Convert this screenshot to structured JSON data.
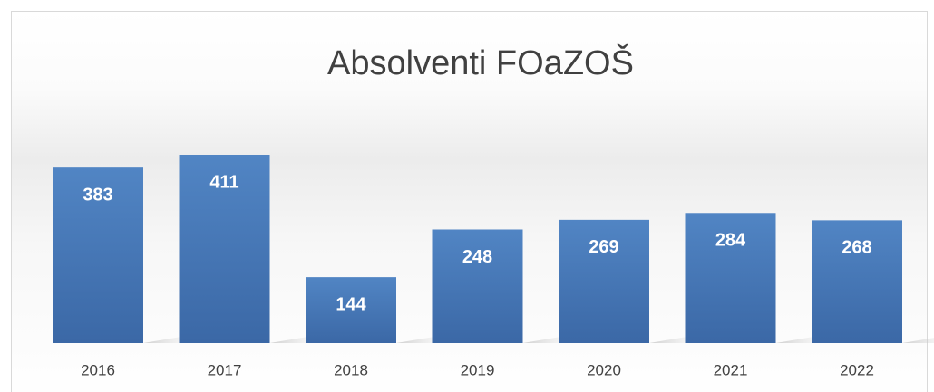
{
  "chart_data": {
    "type": "bar",
    "title": "Absolventi FOaZOŠ",
    "categories": [
      "2016",
      "2017",
      "2018",
      "2019",
      "2020",
      "2021",
      "2022"
    ],
    "values": [
      383,
      411,
      144,
      248,
      269,
      284,
      268
    ],
    "color": "#4a7bb7"
  }
}
